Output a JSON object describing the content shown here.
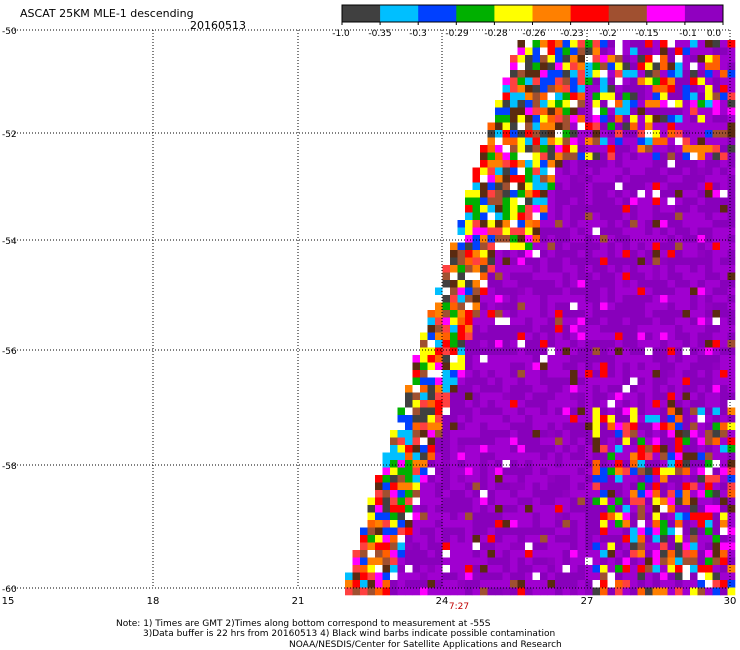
{
  "header": {
    "title": "ASCAT 25KM MLE-1 descending",
    "date": "20160513"
  },
  "colorbar": {
    "labels": [
      "-1.0",
      "-0.35",
      "-0.3",
      "-0.29",
      "-0.28",
      "-0.26",
      "-0.23",
      "-0.2",
      "-0.15",
      "-0.1",
      "0.0"
    ],
    "colors": [
      "#404040",
      "#00bfff",
      "#0040ff",
      "#00b000",
      "#ffff00",
      "#ff8000",
      "#ff0000",
      "#a05030",
      "#ff00ff",
      "#9000c0"
    ]
  },
  "map": {
    "lat_labels": [
      "-50",
      "-52",
      "-54",
      "-56",
      "-58",
      "-60"
    ],
    "lon_labels": [
      "15",
      "18",
      "21",
      "24",
      "27",
      "30"
    ],
    "time_label": "7:27",
    "swath_fill": "#8800bb",
    "swath_alt": "#a000d0"
  },
  "notes": {
    "line1": "Note: 1) Times are GMT 2)Times along bottom correspond to measurement at -55S",
    "line2": "3)Data buffer is 22 hrs from 20160513 4) Black wind barbs indicate possible contamination",
    "line3": "NOAA/NESDIS/Center for Satellite Applications and Research"
  }
}
